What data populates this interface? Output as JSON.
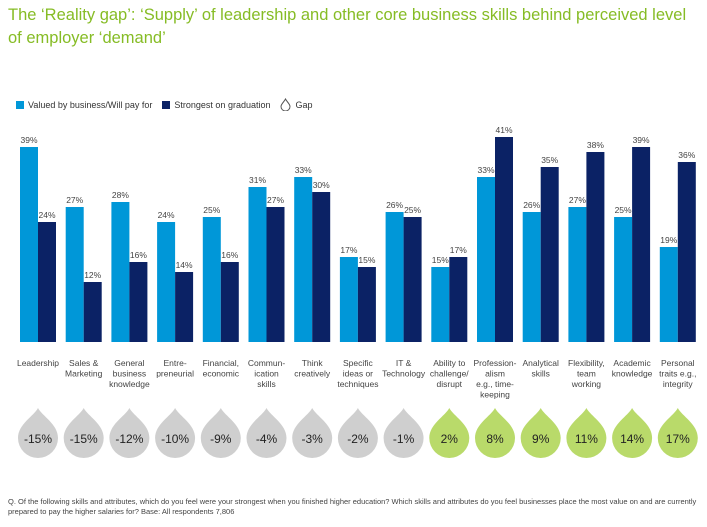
{
  "title": "The ‘Reality gap’: ‘Supply’ of leadership and other core business skills behind perceived level of employer ‘demand’",
  "footnote": "Q. Of the following skills and attributes, which do you feel were your strongest when you finished higher education? Which skills and attributes do you feel businesses place the most value on and are currently prepared to pay the higher salaries for? Base: All respondents 7,806",
  "colors": {
    "title": "#86bc25",
    "valued": "#0097d8",
    "strongest": "#0b2265",
    "gap_negative": "#cfcfcf",
    "gap_positive": "#b9da6a",
    "gap_text": "#222222"
  },
  "chart_data": {
    "type": "bar",
    "legend_placement": "top-left",
    "grid": false,
    "ylim": [
      0,
      45
    ],
    "categories": [
      "Leadership",
      "Sales & Marketing",
      "General business knowledge",
      "Entre- preneurial",
      "Financial, economic",
      "Commun- ication skills",
      "Think creatively",
      "Specific ideas or techniques",
      "IT & Technology",
      "Ability to challenge/ disrupt",
      "Profession- alism e.g., time- keeping",
      "Analytical skills",
      "Flexibility, team working",
      "Academic knowledge",
      "Personal traits e.g., integrity"
    ],
    "category_lines": [
      [
        "Leadership"
      ],
      [
        "Sales &",
        "Marketing"
      ],
      [
        "General",
        "business",
        "knowledge"
      ],
      [
        "Entre-",
        "preneurial"
      ],
      [
        "Financial,",
        "economic"
      ],
      [
        "Commun-",
        "ication",
        "skills"
      ],
      [
        "Think",
        "creatively"
      ],
      [
        "Specific",
        "ideas or",
        "techniques"
      ],
      [
        "IT &",
        "Technology"
      ],
      [
        "Ability to",
        "challenge/",
        "disrupt"
      ],
      [
        "Profession-",
        "alism",
        "e.g., time-",
        "keeping"
      ],
      [
        "Analytical",
        "skills"
      ],
      [
        "Flexibility,",
        "team",
        "working"
      ],
      [
        "Academic",
        "knowledge"
      ],
      [
        "Personal",
        "traits e.g.,",
        "integrity"
      ]
    ],
    "series": [
      {
        "name": "Valued by business/Will pay for",
        "values": [
          39,
          27,
          28,
          24,
          25,
          31,
          33,
          17,
          26,
          15,
          33,
          26,
          27,
          25,
          19
        ],
        "labels": [
          "39%",
          "27%",
          "28%",
          "24%",
          "25%",
          "31%",
          "33%",
          "17%",
          "26%",
          "15%",
          "33%",
          "26%",
          "27%",
          "25%",
          "19%"
        ]
      },
      {
        "name": "Strongest on graduation",
        "values": [
          24,
          12,
          16,
          14,
          16,
          27,
          30,
          15,
          25,
          17,
          41,
          35,
          38,
          39,
          36
        ],
        "labels": [
          "24%",
          "12%",
          "16%",
          "14%",
          "16%",
          "27%",
          "30%",
          "15%",
          "25%",
          "17%",
          "41%",
          "35%",
          "38%",
          "39%",
          "36%"
        ]
      }
    ],
    "gap": {
      "name": "Gap",
      "values": [
        -15,
        -15,
        -12,
        -10,
        -9,
        -4,
        -3,
        -2,
        -1,
        2,
        8,
        9,
        11,
        14,
        17
      ],
      "labels": [
        "-15%",
        "-15%",
        "-12%",
        "-10%",
        "-9%",
        "-4%",
        "-3%",
        "-2%",
        "-1%",
        "2%",
        "8%",
        "9%",
        "11%",
        "14%",
        "17%"
      ]
    }
  }
}
